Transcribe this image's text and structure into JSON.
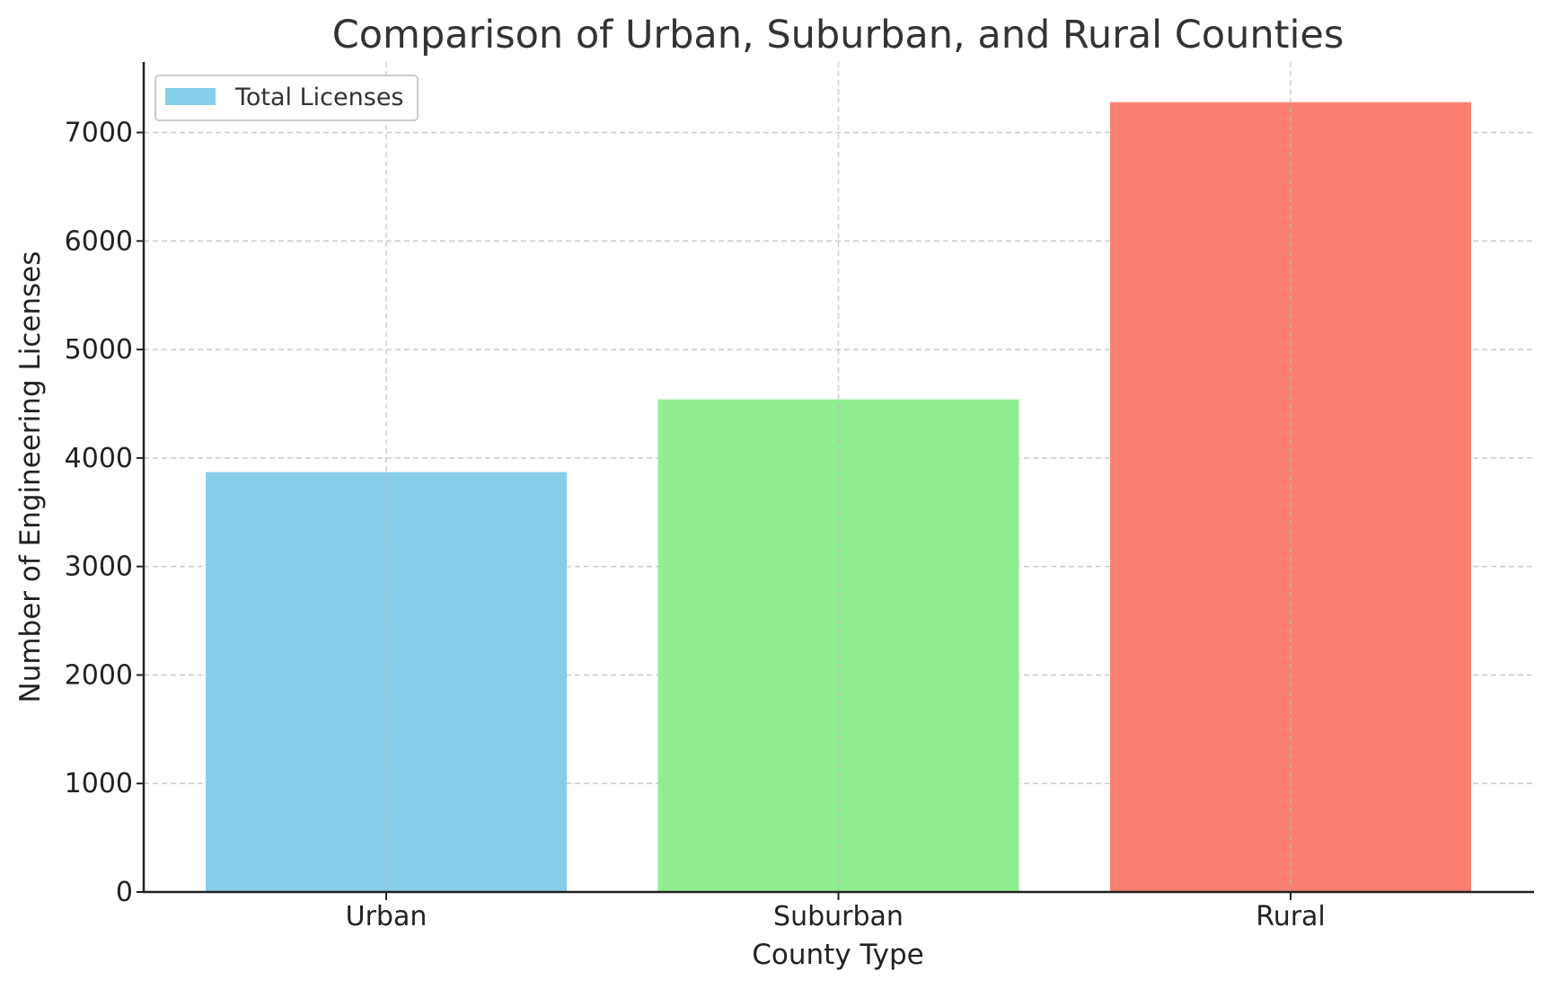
{
  "chart_data": {
    "type": "bar",
    "title": "Comparison of Urban, Suburban, and Rural Counties",
    "xlabel": "County Type",
    "ylabel": "Number of Engineering Licenses",
    "categories": [
      "Urban",
      "Suburban",
      "Rural"
    ],
    "series": [
      {
        "name": "Total Licenses",
        "values": [
          3870,
          4540,
          7280
        ],
        "colors": [
          "#87CEEB",
          "#90EE90",
          "#FA8072"
        ]
      }
    ],
    "yticks": [
      "0",
      "1000",
      "2000",
      "3000",
      "4000",
      "5000",
      "6000",
      "7000"
    ],
    "ylim": [
      0,
      7650
    ],
    "grid": true,
    "legend": {
      "position": "top-left",
      "entries": [
        "Total Licenses"
      ]
    }
  }
}
